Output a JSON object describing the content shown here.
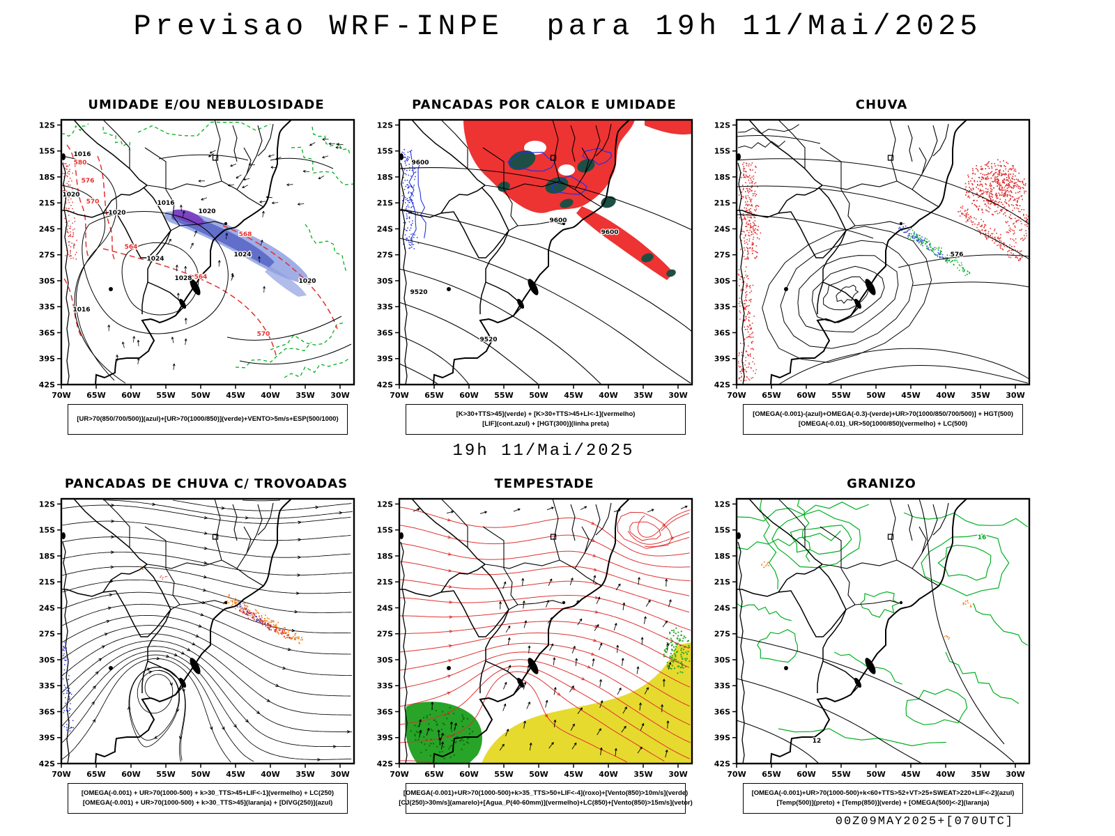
{
  "page": {
    "title": "Previsao WRF-INPE  para 19h 11/Mai/2025",
    "subtitle": "19h 11/Mai/2025",
    "footer": "00Z09MAY2025+[070UTC]"
  },
  "axes": {
    "lat_labels": [
      "12S",
      "15S",
      "18S",
      "21S",
      "24S",
      "27S",
      "30S",
      "33S",
      "36S",
      "39S",
      "42S"
    ],
    "lon_labels": [
      "70W",
      "65W",
      "60W",
      "55W",
      "50W",
      "45W",
      "40W",
      "35W",
      "30W"
    ]
  },
  "panels": [
    {
      "id": "umidade",
      "title": "UMIDADE E/OU NEBULOSIDADE",
      "legend": [
        "[UR>70(850/700/500)](azul)+[UR>70(1000/850)](verde)+VENTO>5m/s+ESP(500/1000)"
      ],
      "contour_labels": [
        "1016",
        "1020",
        "1020",
        "1016",
        "1020",
        "1024",
        "1028",
        "1024",
        "1020",
        "1016",
        "580",
        "576",
        "570",
        "564",
        "568",
        "564",
        "570"
      ]
    },
    {
      "id": "pancadas-calor-umidade",
      "title": "PANCADAS POR CALOR E UMIDADE",
      "legend": [
        "[K>30+TTS>45](verde) + [K>30+TTS>45+LI<-1](vermelho)",
        "[LIF](cont.azul) + [HGT(300)](linha preta)"
      ],
      "contour_labels": [
        "9600",
        "9600",
        "9600",
        "9520",
        "9520"
      ]
    },
    {
      "id": "chuva",
      "title": "CHUVA",
      "legend": [
        "[OMEGA(-0.001)-(azul)+OMEGA(-0.3)-(verde)+UR>70(1000/850/700/500)] + HGT(500)",
        "[OMEGA(-0.01)_UR>50(1000/850)(vermelho) + LC(500)"
      ],
      "contour_labels": [
        "576"
      ]
    },
    {
      "id": "pancadas-trovoadas",
      "title": "PANCADAS DE CHUVA C/ TROVOADAS",
      "legend": [
        "[OMEGA(-0.001) + UR>70(1000-500) + k>30_TTS>45+LIF<-1](vermelho) + LC(250)",
        "[OMEGA(-0.001) + UR>70(1000-500) + k>30_TTS>45](laranja) + [DIVG(250)](azul)"
      ],
      "contour_labels": []
    },
    {
      "id": "tempestade",
      "title": "TEMPESTADE",
      "legend": [
        "[OMEGA(-0.001)+UR>70(1000-500)+k>35_TTS>50+LIF<-4](roxo)+[Vento(850)>10m/s](verde)",
        "[CJ(250)>30m/s](amarelo)+[Agua_P(40-60mm)](vermelho)+LC(850)+[Vento(850)>15m/s](vetor)"
      ],
      "contour_labels": []
    },
    {
      "id": "granizo",
      "title": "GRANIZO",
      "legend": [
        "[OMEGA(-0.001)+UR>70(1000-500)+k<60+TTS>52+VT>25+SWEAT>220+LIF<-2](azul)",
        "[Temp(500)](preto) + [Temp(850)](verde) + [OMEGA(500)<-2](laranja)"
      ],
      "contour_labels": [
        "12",
        "16"
      ]
    }
  ],
  "colors": {
    "humidity_blue": "#8fa0e0",
    "humidity_deep_blue": "#5a68c8",
    "front_purple": "#7a3fc0",
    "convection_red": "#ee3333",
    "dark_teal": "#1d4f44",
    "contour_green": "#00b020",
    "contour_blue": "#2233dd",
    "contour_red": "#e03030",
    "orange": "#ef7f1f",
    "storm_green": "#28a428",
    "storm_yellow": "#e6da2f",
    "black": "#000000"
  }
}
